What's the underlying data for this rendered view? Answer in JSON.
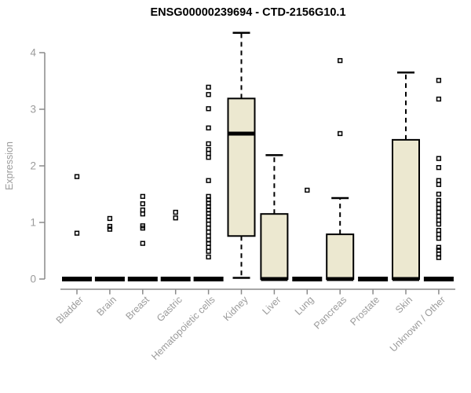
{
  "page": {
    "background": "#ffffff"
  },
  "chart_data": {
    "type": "boxplot",
    "title": "ENSG00000239694 - CTD-2156G10.1",
    "ylabel": "Expression",
    "xlabel": "",
    "ylim": [
      0,
      4.4
    ],
    "yticks": [
      0,
      1,
      2,
      3,
      4
    ],
    "grid": false,
    "legend": "none",
    "categories": [
      "Bladder",
      "Brain",
      "Breast",
      "Gastric",
      "Hematopoietic cells",
      "Kidney",
      "Liver",
      "Lung",
      "Pancreas",
      "Prostate",
      "Skin",
      "Unknown / Other"
    ],
    "boxes": [
      {
        "category": "Bladder",
        "low": 0,
        "q1": 0,
        "median": 0,
        "q3": 0,
        "high": 0,
        "outliers": [
          1.81,
          0.81
        ]
      },
      {
        "category": "Brain",
        "low": 0,
        "q1": 0,
        "median": 0,
        "q3": 0,
        "high": 0,
        "outliers": [
          1.07,
          0.93,
          0.88
        ]
      },
      {
        "category": "Breast",
        "low": 0,
        "q1": 0,
        "median": 0,
        "q3": 0,
        "high": 0,
        "outliers": [
          1.46,
          1.33,
          1.22,
          1.15,
          0.94,
          0.9,
          0.63
        ]
      },
      {
        "category": "Gastric",
        "low": 0,
        "q1": 0,
        "median": 0,
        "q3": 0,
        "high": 0,
        "outliers": [
          1.18,
          1.08
        ]
      },
      {
        "category": "Hematopoietic cells",
        "low": 0,
        "q1": 0,
        "median": 0,
        "q3": 0,
        "high": 0,
        "outliers": [
          3.39,
          3.26,
          3.01,
          2.67,
          2.39,
          2.29,
          2.22,
          2.15,
          1.74,
          1.46,
          1.4,
          1.34,
          1.28,
          1.22,
          1.16,
          1.1,
          1.04,
          0.97,
          0.9,
          0.83,
          0.76,
          0.69,
          0.63,
          0.56,
          0.49,
          0.39
        ]
      },
      {
        "category": "Kidney",
        "low": 0.02,
        "q1": 0.76,
        "median": 2.57,
        "q3": 3.19,
        "high": 4.35,
        "outliers": []
      },
      {
        "category": "Liver",
        "low": 0,
        "q1": 0,
        "median": 0,
        "q3": 1.15,
        "high": 2.19,
        "outliers": []
      },
      {
        "category": "Lung",
        "low": 0,
        "q1": 0,
        "median": 0,
        "q3": 0,
        "high": 0,
        "outliers": [
          1.57
        ]
      },
      {
        "category": "Pancreas",
        "low": 0,
        "q1": 0,
        "median": 0,
        "q3": 0.79,
        "high": 1.43,
        "outliers": [
          3.86,
          2.57
        ]
      },
      {
        "category": "Prostate",
        "low": 0,
        "q1": 0,
        "median": 0,
        "q3": 0,
        "high": 0,
        "outliers": []
      },
      {
        "category": "Skin",
        "low": 0,
        "q1": 0,
        "median": 0,
        "q3": 2.46,
        "high": 3.65,
        "outliers": []
      },
      {
        "category": "Unknown / Other",
        "low": 0,
        "q1": 0,
        "median": 0,
        "q3": 0,
        "high": 0,
        "outliers": [
          3.51,
          3.18,
          2.13,
          1.97,
          1.74,
          1.67,
          1.5,
          1.39,
          1.32,
          1.25,
          1.18,
          1.11,
          1.04,
          0.97,
          0.86,
          0.79,
          0.72,
          0.56,
          0.51,
          0.44,
          0.38
        ]
      }
    ],
    "style": {
      "box_fill": "#ece8d0",
      "box_stroke": "#000000",
      "median_color": "#000000",
      "whisker_style": "dashed",
      "outlier_marker": "open-square",
      "axis_color": "#8a8a8a",
      "label_color": "#9b9b9b",
      "title_color": "#000000"
    }
  }
}
